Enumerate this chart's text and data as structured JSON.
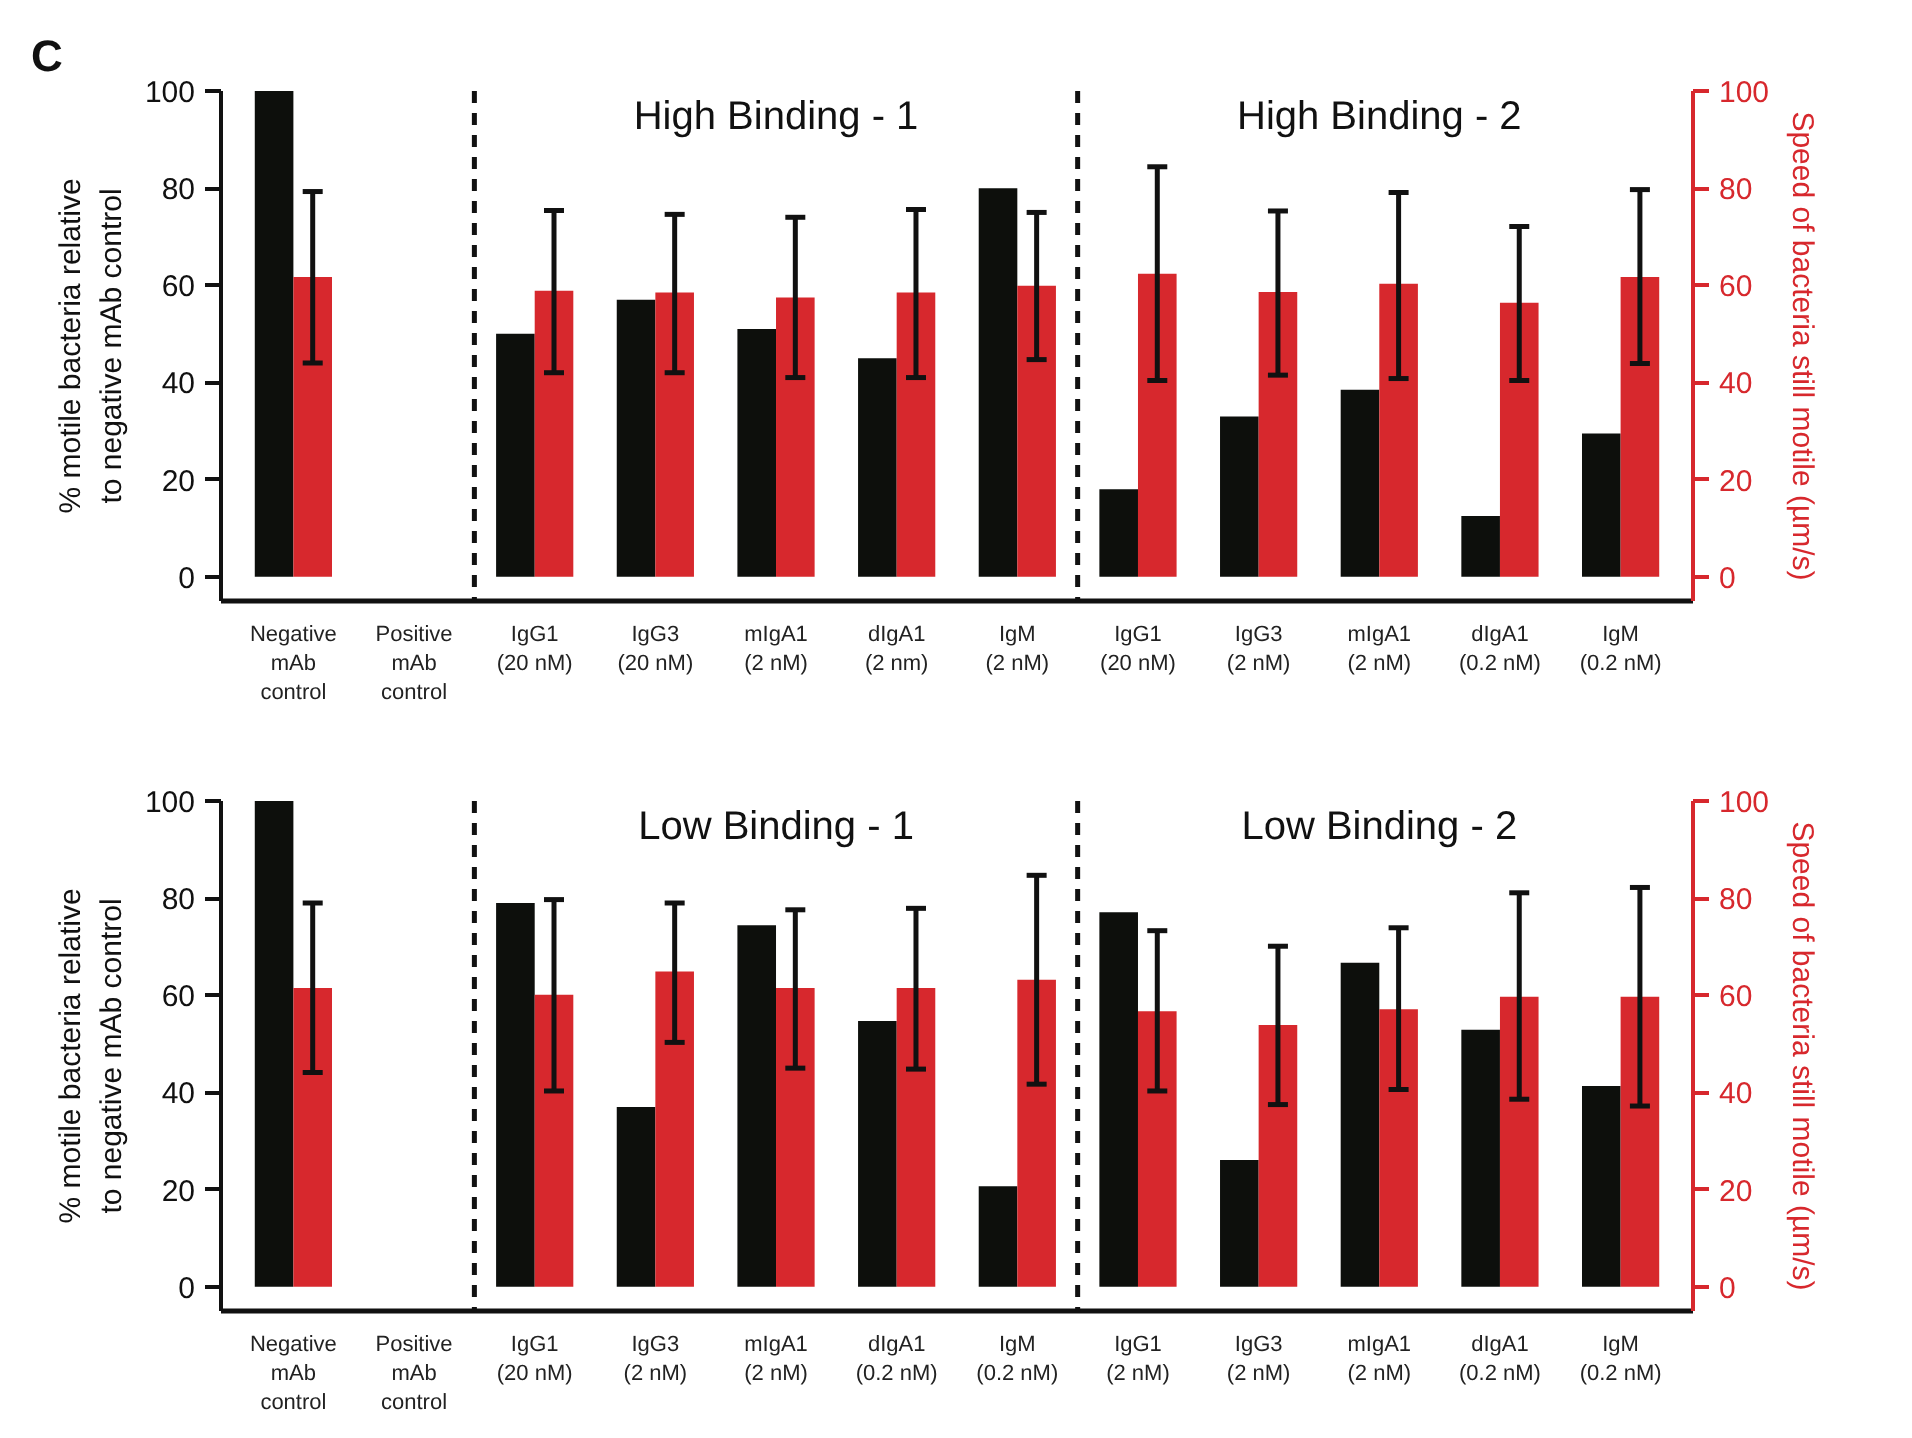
{
  "chart_data": [
    {
      "type": "bar",
      "ylabel": "% motile bacteria relative\nto negative mAb control",
      "y2label": "Speed of bacteria still motile (µm/s)",
      "categories": [
        "Negative\nmAb\ncontrol",
        "Positive\nmAb\ncontrol",
        "IgG1\n(20 nM)",
        "IgG3\n(20 nM)",
        "mIgA1\n(2 nM)",
        "dIgA1\n(2 nm)",
        "IgM\n(2 nM)",
        "IgG1\n(20 nM)",
        "IgG3\n(2 nM)",
        "mIgA1\n(2 nM)",
        "dIgA1\n(0.2 nM)",
        "IgM\n(0.2 nM)"
      ],
      "series": [
        {
          "color": "#0d0f0c",
          "values": [
            100,
            0,
            50,
            57,
            51,
            45,
            80,
            18,
            33,
            38.5,
            12.5,
            29.5
          ]
        },
        {
          "color": "#d7282d",
          "axis": "y2",
          "values": [
            61.7,
            0,
            58.9,
            58.5,
            57.5,
            58.5,
            59.9,
            62.4,
            58.6,
            60.3,
            56.4,
            61.7
          ],
          "errors": [
            [
              44,
              79.3
            ],
            null,
            [
              42,
              75.4
            ],
            [
              42,
              74.6
            ],
            [
              41,
              74
            ],
            [
              41,
              75.6
            ],
            [
              44.7,
              75
            ],
            [
              40.4,
              84.4
            ],
            [
              41.5,
              75.3
            ],
            [
              40.8,
              79.1
            ],
            [
              40.4,
              72.1
            ],
            [
              43.9,
              79.7
            ]
          ]
        }
      ],
      "ylim": [
        -5,
        100
      ],
      "yticks": [
        0,
        20,
        40,
        60,
        80,
        100
      ],
      "y2lim": [
        -5,
        100
      ],
      "y2ticks": [
        0,
        20,
        40,
        60,
        80,
        100
      ],
      "annotations": [
        "C",
        "High Binding - 1",
        "High Binding - 2"
      ],
      "grid": false
    },
    {
      "type": "bar",
      "ylabel": "% motile bacteria relative\nto negative mAb control",
      "y2label": "Speed of bacteria still motile (µm/s)",
      "categories": [
        "Negative\nmAb\ncontrol",
        "Positive\nmAb\ncontrol",
        "IgG1\n(20 nM)",
        "IgG3\n(2 nM)",
        "mIgA1\n(2 nM)",
        "dIgA1\n(0.2 nM)",
        "IgM\n(0.2 nM)",
        "IgG1\n(2 nM)",
        "IgG3\n(2 nM)",
        "mIgA1\n(2 nM)",
        "dIgA1\n(0.2 nM)",
        "IgM\n(0.2 nM)"
      ],
      "series": [
        {
          "color": "#0d0f0c",
          "values": [
            100,
            0,
            79,
            37,
            74.4,
            54.7,
            20.7,
            77.1,
            26.1,
            66.7,
            52.9,
            41.3
          ]
        },
        {
          "color": "#d7282d",
          "axis": "y2",
          "values": [
            61.5,
            0,
            60.1,
            64.9,
            61.5,
            61.5,
            63.2,
            56.7,
            53.9,
            57.1,
            59.7,
            59.7
          ],
          "errors": [
            [
              44.1,
              79
            ],
            null,
            [
              40.3,
              79.7
            ],
            [
              50.3,
              79
            ],
            [
              45,
              77.6
            ],
            [
              44.8,
              77.9
            ],
            [
              41.7,
              84.7
            ],
            [
              40.3,
              73.3
            ],
            [
              37.5,
              70.1
            ],
            [
              40.6,
              73.9
            ],
            [
              38.6,
              81.1
            ],
            [
              37.2,
              82.2
            ]
          ]
        }
      ],
      "ylim": [
        -5,
        100
      ],
      "yticks": [
        0,
        20,
        40,
        60,
        80,
        100
      ],
      "y2lim": [
        -5,
        100
      ],
      "y2ticks": [
        0,
        20,
        40,
        60,
        80,
        100
      ],
      "annotations": [
        "Low Binding - 1",
        "Low Binding - 2"
      ],
      "grid": false
    }
  ]
}
